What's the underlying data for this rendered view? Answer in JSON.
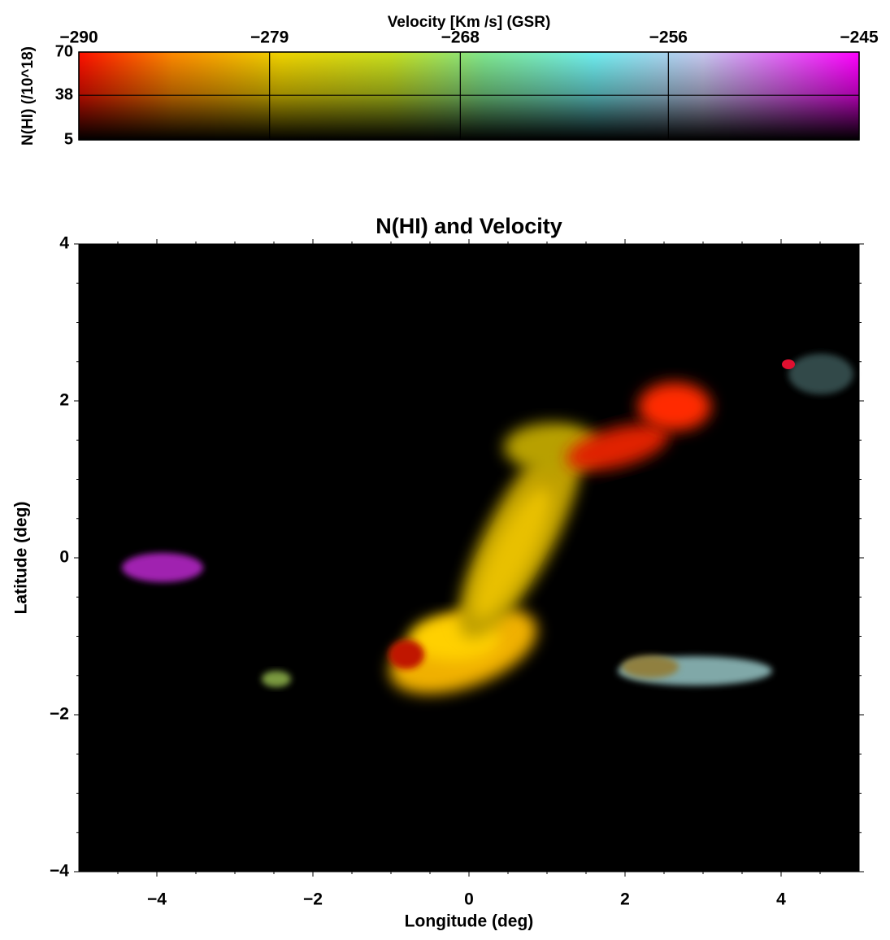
{
  "chart_data": {
    "type": "image",
    "title": "N(HI) and Velocity",
    "xlabel": "Longitude (deg)",
    "ylabel": "Latitude  (deg)",
    "xlim": [
      -5,
      5
    ],
    "ylim": [
      -4,
      4
    ],
    "xticks": [
      {
        "value": -4,
        "label": "−4"
      },
      {
        "value": -2,
        "label": "−2"
      },
      0,
      2,
      4
    ],
    "yticks": [
      {
        "value": -4,
        "label": "−4"
      },
      {
        "value": -2,
        "label": "−2"
      },
      0,
      2,
      4
    ],
    "colorbar": {
      "label": "Velocity [Km /s] (GSR)",
      "ylabel": "N(HI) (/10^18)",
      "xlim": [
        -290,
        -245
      ],
      "xticks": [
        {
          "value": -290,
          "label": "−290"
        },
        {
          "value": -279,
          "label": "−279"
        },
        {
          "value": -268,
          "label": "−268"
        },
        {
          "value": -256,
          "label": "−256"
        },
        {
          "value": -245,
          "label": "−245"
        }
      ],
      "ylim": [
        5,
        70
      ],
      "yticks": [
        5,
        38,
        70
      ]
    }
  }
}
